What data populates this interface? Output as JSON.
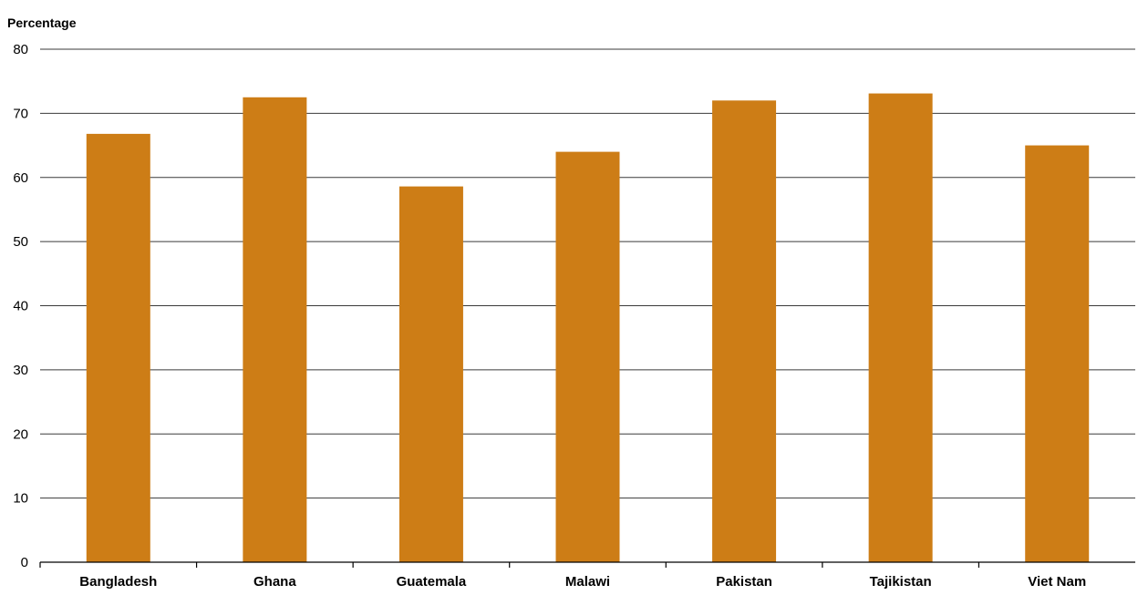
{
  "chart_data": {
    "type": "bar",
    "ylabel": "Percentage",
    "xlabel": "",
    "categories": [
      "Bangladesh",
      "Ghana",
      "Guatemala",
      "Malawi",
      "Pakistan",
      "Tajikistan",
      "Viet Nam"
    ],
    "values": [
      66.8,
      72.5,
      58.6,
      64.0,
      72.0,
      73.1,
      65.0
    ],
    "ylim": [
      0,
      80
    ],
    "yticks": [
      0,
      10,
      20,
      30,
      40,
      50,
      60,
      70,
      80
    ],
    "grid": true,
    "legend": "none",
    "colors": {
      "bar": "#CD7D16",
      "grid": "#3a3a3a",
      "axis": "#000000",
      "text": "#000000"
    }
  }
}
